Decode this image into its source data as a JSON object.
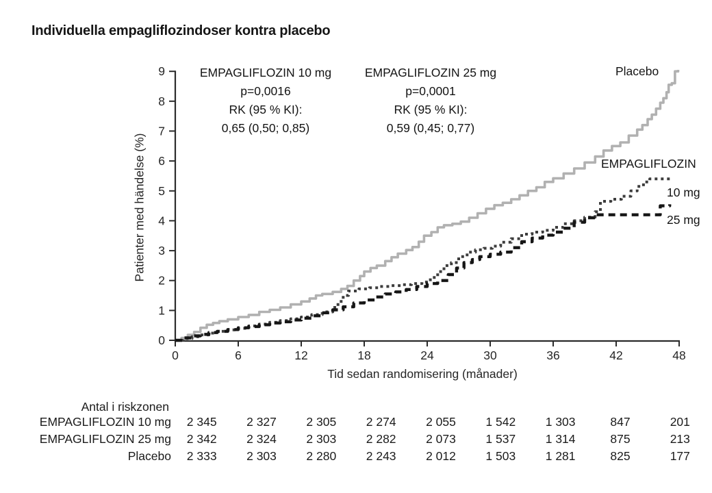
{
  "title": "Individuella empagliflozindoser kontra placebo",
  "chart_data": {
    "type": "line",
    "subtype": "kaplan-meier-step",
    "title": "Individuella empagliflozindoser kontra placebo",
    "xlabel": "Tid sedan randomisering (månader)",
    "ylabel": "Patienter med händelse (%)",
    "xlim": [
      0,
      48
    ],
    "ylim": [
      0,
      9
    ],
    "xticks": [
      0,
      6,
      12,
      18,
      24,
      30,
      36,
      42,
      48
    ],
    "yticks": [
      0,
      1,
      2,
      3,
      4,
      5,
      6,
      7,
      8,
      9
    ],
    "grid": false,
    "legend_position": "inline-right",
    "annotations": [
      {
        "lines": [
          "EMPAGLIFLOZIN 10 mg",
          "p=0,0016",
          "RK (95 % KI):",
          "0,65 (0,50; 0,85)"
        ]
      },
      {
        "lines": [
          "EMPAGLIFLOZIN 25 mg",
          "p=0,0001",
          "RK (95 % KI):",
          "0,59 (0,45; 0,77)"
        ]
      }
    ],
    "curve_labels": {
      "placebo": "Placebo",
      "empagliflozin": "EMPAGLIFLOZIN",
      "dose10": "10 mg",
      "dose25": "25 mg"
    },
    "series": [
      {
        "name": "Placebo",
        "style": "solid",
        "color": "#b1b1b1",
        "width": 3.6,
        "points": [
          [
            0,
            0
          ],
          [
            0.6,
            0.08
          ],
          [
            1.2,
            0.18
          ],
          [
            1.8,
            0.28
          ],
          [
            2.4,
            0.42
          ],
          [
            3,
            0.52
          ],
          [
            3.6,
            0.58
          ],
          [
            4.2,
            0.64
          ],
          [
            5,
            0.7
          ],
          [
            6,
            0.78
          ],
          [
            7,
            0.85
          ],
          [
            8,
            0.95
          ],
          [
            9,
            1.02
          ],
          [
            10,
            1.1
          ],
          [
            11,
            1.2
          ],
          [
            12,
            1.3
          ],
          [
            12.8,
            1.4
          ],
          [
            13.4,
            1.5
          ],
          [
            14,
            1.55
          ],
          [
            15,
            1.62
          ],
          [
            15.8,
            1.72
          ],
          [
            16.4,
            1.82
          ],
          [
            17,
            2.0
          ],
          [
            17.6,
            2.15
          ],
          [
            18,
            2.3
          ],
          [
            18.6,
            2.42
          ],
          [
            19.2,
            2.5
          ],
          [
            20,
            2.65
          ],
          [
            20.6,
            2.78
          ],
          [
            21.2,
            2.9
          ],
          [
            22,
            3.02
          ],
          [
            22.6,
            3.12
          ],
          [
            23.2,
            3.3
          ],
          [
            23.7,
            3.5
          ],
          [
            24.4,
            3.62
          ],
          [
            25,
            3.78
          ],
          [
            25.6,
            3.85
          ],
          [
            26.4,
            3.9
          ],
          [
            27.2,
            3.97
          ],
          [
            28,
            4.1
          ],
          [
            28.8,
            4.25
          ],
          [
            29.6,
            4.4
          ],
          [
            30.4,
            4.52
          ],
          [
            31.2,
            4.6
          ],
          [
            32,
            4.72
          ],
          [
            32.8,
            4.85
          ],
          [
            33.6,
            5.0
          ],
          [
            34.4,
            5.12
          ],
          [
            35.2,
            5.3
          ],
          [
            36,
            5.42
          ],
          [
            37,
            5.58
          ],
          [
            38,
            5.75
          ],
          [
            39,
            5.95
          ],
          [
            40,
            6.15
          ],
          [
            40.8,
            6.35
          ],
          [
            41.6,
            6.5
          ],
          [
            42.4,
            6.62
          ],
          [
            43.2,
            6.85
          ],
          [
            44,
            7.05
          ],
          [
            44.5,
            7.2
          ],
          [
            45,
            7.4
          ],
          [
            45.4,
            7.55
          ],
          [
            45.8,
            7.75
          ],
          [
            46.2,
            7.95
          ],
          [
            46.5,
            8.1
          ],
          [
            46.8,
            8.3
          ],
          [
            47,
            8.55
          ],
          [
            47.3,
            8.6
          ],
          [
            47.6,
            9.0
          ],
          [
            47.9,
            9.05
          ]
        ]
      },
      {
        "name": "EMPAGLIFLOZIN 10 mg",
        "style": "dotted",
        "color": "#3d3d3d",
        "width": 4,
        "points": [
          [
            0,
            0
          ],
          [
            0.8,
            0.06
          ],
          [
            1.6,
            0.12
          ],
          [
            2.4,
            0.18
          ],
          [
            3.2,
            0.24
          ],
          [
            4,
            0.3
          ],
          [
            5,
            0.35
          ],
          [
            6,
            0.4
          ],
          [
            7,
            0.48
          ],
          [
            8,
            0.54
          ],
          [
            9,
            0.6
          ],
          [
            10,
            0.66
          ],
          [
            11,
            0.72
          ],
          [
            12,
            0.78
          ],
          [
            13,
            0.86
          ],
          [
            14,
            0.95
          ],
          [
            15,
            1.1
          ],
          [
            15.5,
            1.3
          ],
          [
            16,
            1.5
          ],
          [
            16.5,
            1.65
          ],
          [
            17.5,
            1.72
          ],
          [
            18.5,
            1.76
          ],
          [
            19.5,
            1.8
          ],
          [
            20.5,
            1.83
          ],
          [
            21.5,
            1.86
          ],
          [
            22.5,
            1.9
          ],
          [
            23.5,
            1.95
          ],
          [
            24.3,
            2.1
          ],
          [
            25,
            2.3
          ],
          [
            25.6,
            2.5
          ],
          [
            26.3,
            2.6
          ],
          [
            27,
            2.8
          ],
          [
            27.8,
            2.95
          ],
          [
            28.6,
            3.03
          ],
          [
            29.4,
            3.08
          ],
          [
            30.2,
            3.15
          ],
          [
            31,
            3.28
          ],
          [
            32,
            3.4
          ],
          [
            33,
            3.55
          ],
          [
            34,
            3.62
          ],
          [
            35,
            3.68
          ],
          [
            36,
            3.78
          ],
          [
            37,
            3.9
          ],
          [
            38,
            4.0
          ],
          [
            39,
            4.12
          ],
          [
            40,
            4.3
          ],
          [
            40.5,
            4.65
          ],
          [
            41.5,
            4.72
          ],
          [
            42.5,
            4.82
          ],
          [
            43.4,
            5.0
          ],
          [
            44,
            5.15
          ],
          [
            44.6,
            5.3
          ],
          [
            45.2,
            5.4
          ],
          [
            47.3,
            5.43
          ]
        ]
      },
      {
        "name": "EMPAGLIFLOZIN 25 mg",
        "style": "dashed",
        "color": "#161616",
        "width": 4.4,
        "points": [
          [
            0,
            0
          ],
          [
            0.8,
            0.08
          ],
          [
            1.6,
            0.15
          ],
          [
            2.4,
            0.2
          ],
          [
            3.2,
            0.26
          ],
          [
            4,
            0.3
          ],
          [
            5,
            0.36
          ],
          [
            6,
            0.42
          ],
          [
            7,
            0.46
          ],
          [
            8,
            0.52
          ],
          [
            9,
            0.58
          ],
          [
            10,
            0.62
          ],
          [
            11,
            0.68
          ],
          [
            12,
            0.74
          ],
          [
            13,
            0.82
          ],
          [
            14,
            0.92
          ],
          [
            15,
            1.02
          ],
          [
            16,
            1.12
          ],
          [
            17,
            1.25
          ],
          [
            18,
            1.35
          ],
          [
            19,
            1.45
          ],
          [
            20,
            1.55
          ],
          [
            21,
            1.62
          ],
          [
            22,
            1.7
          ],
          [
            23,
            1.8
          ],
          [
            24,
            1.9
          ],
          [
            25,
            2.0
          ],
          [
            26,
            2.2
          ],
          [
            26.8,
            2.42
          ],
          [
            27.5,
            2.6
          ],
          [
            28.3,
            2.7
          ],
          [
            29,
            2.8
          ],
          [
            30,
            2.88
          ],
          [
            31,
            2.95
          ],
          [
            32,
            3.1
          ],
          [
            33,
            3.3
          ],
          [
            34,
            3.42
          ],
          [
            35,
            3.52
          ],
          [
            36,
            3.62
          ],
          [
            37,
            3.75
          ],
          [
            38,
            3.95
          ],
          [
            39,
            4.1
          ],
          [
            40,
            4.2
          ],
          [
            46,
            4.2
          ],
          [
            46.2,
            4.5
          ],
          [
            47.1,
            4.55
          ]
        ]
      }
    ]
  },
  "risk_table": {
    "header": "Antal i riskzonen",
    "rows": [
      {
        "label": "EMPAGLIFLOZIN 10 mg",
        "values": [
          "2 345",
          "2 327",
          "2 305",
          "2 274",
          "2 055",
          "1 542",
          "1 303",
          "847",
          "201"
        ]
      },
      {
        "label": "EMPAGLIFLOZIN 25 mg",
        "values": [
          "2 342",
          "2 324",
          "2 303",
          "2 282",
          "2 073",
          "1 537",
          "1 314",
          "875",
          "213"
        ]
      },
      {
        "label": "Placebo",
        "values": [
          "2 333",
          "2 303",
          "2 280",
          "2 243",
          "2 012",
          "1 503",
          "1 281",
          "825",
          "177"
        ]
      }
    ]
  }
}
